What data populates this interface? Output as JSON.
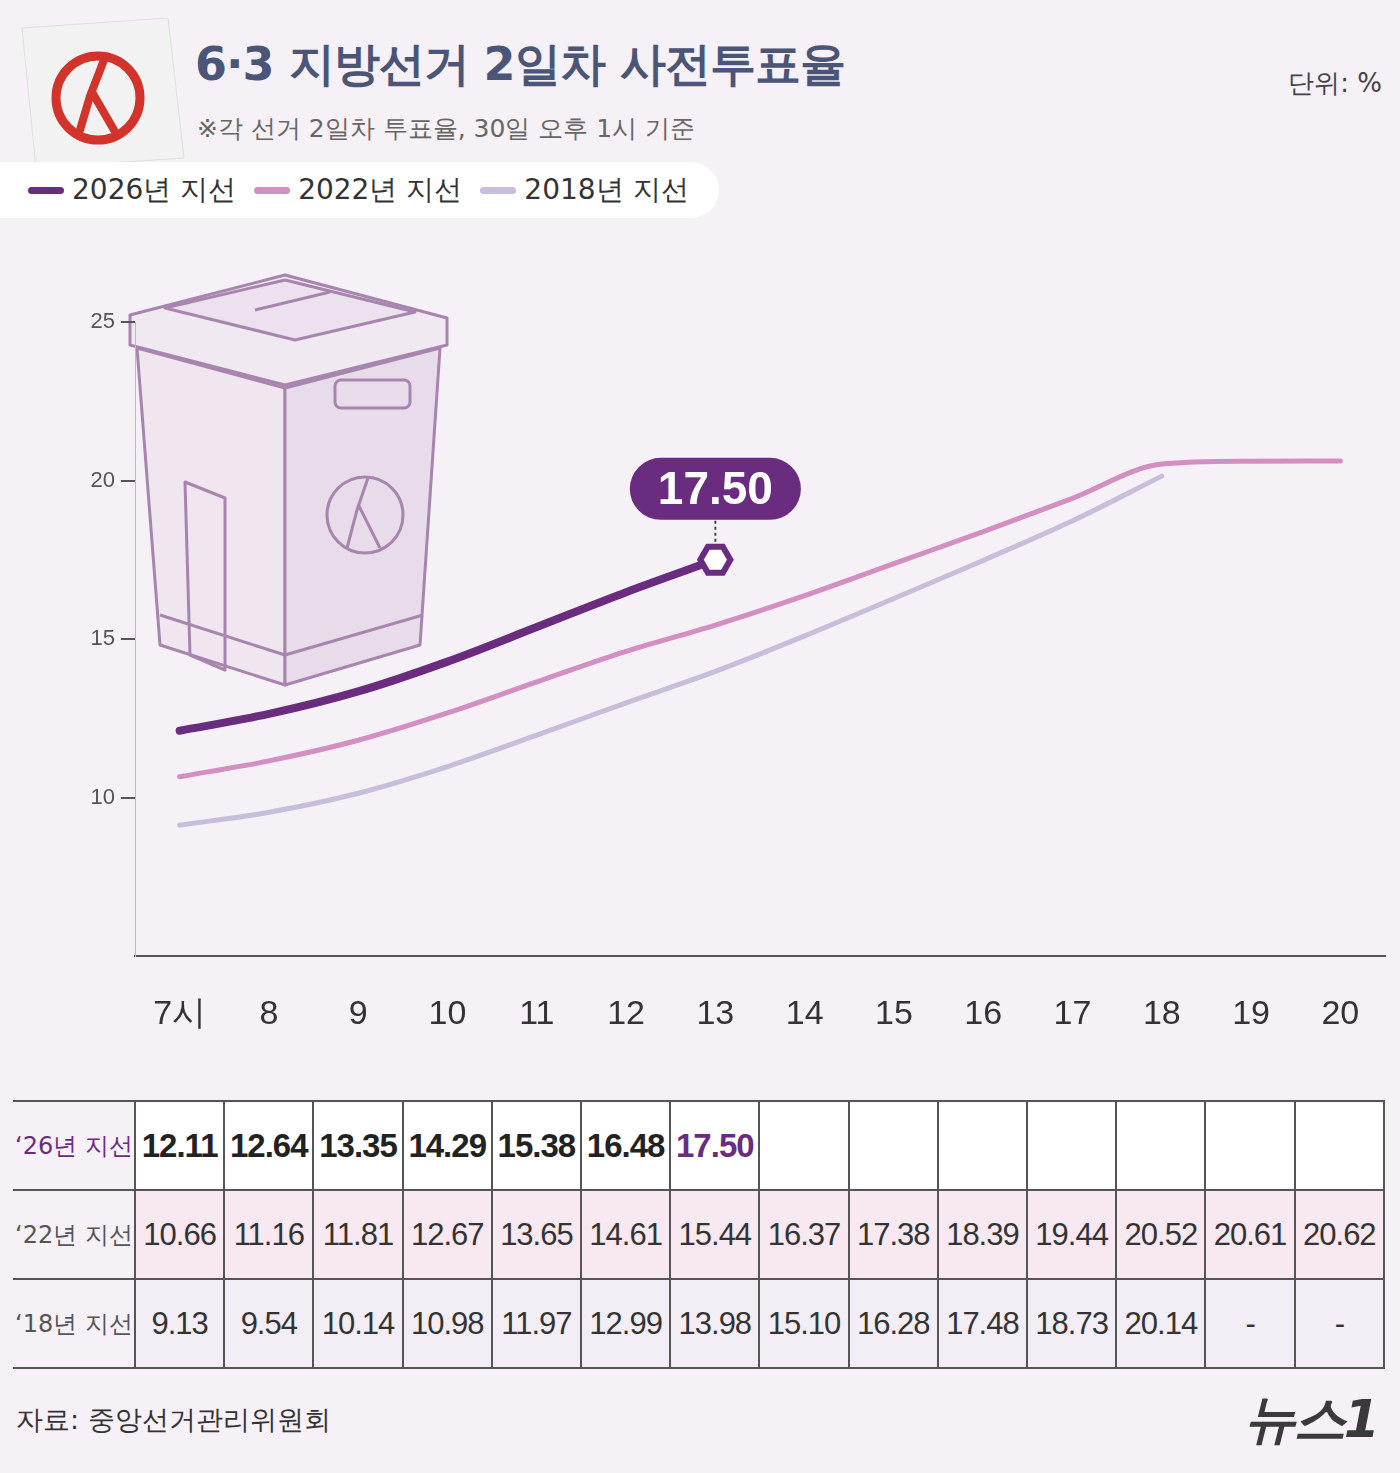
{
  "chart_data": {
    "type": "line",
    "title": "6·3 지방선거 2일차 사전투표율",
    "subtitle": "※각 선거 2일차 투표율, 30일 오후 1시 기준",
    "unit_label": "단위: %",
    "source": "자료: 중앙선거관리위원회",
    "brand": "뉴스1",
    "categories": [
      "7시",
      "8",
      "9",
      "10",
      "11",
      "12",
      "13",
      "14",
      "15",
      "16",
      "17",
      "18",
      "19",
      "20"
    ],
    "series": [
      {
        "name": "2026년 지선",
        "table_label": "‘26년 지선",
        "color": "#6a2c7e",
        "values": [
          12.11,
          12.64,
          13.35,
          14.29,
          15.38,
          16.48,
          17.5,
          null,
          null,
          null,
          null,
          null,
          null,
          null
        ],
        "value_labels": [
          "12.11",
          "12.64",
          "13.35",
          "14.29",
          "15.38",
          "16.48",
          "17.50",
          null,
          null,
          null,
          null,
          null,
          null,
          null
        ]
      },
      {
        "name": "2022년 지선",
        "table_label": "‘22년 지선",
        "color": "#d38ec2",
        "values": [
          10.66,
          11.16,
          11.81,
          12.67,
          13.65,
          14.61,
          15.44,
          16.37,
          17.38,
          18.39,
          19.44,
          20.52,
          20.61,
          20.62
        ],
        "value_labels": [
          "10.66",
          "11.16",
          "11.81",
          "12.67",
          "13.65",
          "14.61",
          "15.44",
          "16.37",
          "17.38",
          "18.39",
          "19.44",
          "20.52",
          "20.61",
          "20.62"
        ]
      },
      {
        "name": "2018년 지선",
        "table_label": "‘18년 지선",
        "color": "#c8bedb",
        "values": [
          9.13,
          9.54,
          10.14,
          10.98,
          11.97,
          12.99,
          13.98,
          15.1,
          16.28,
          17.48,
          18.73,
          20.14,
          null,
          null
        ],
        "value_labels": [
          "9.13",
          "9.54",
          "10.14",
          "10.98",
          "11.97",
          "12.99",
          "13.98",
          "15.10",
          "16.28",
          "17.48",
          "18.73",
          "20.14",
          "-",
          "-"
        ]
      }
    ],
    "annotation": {
      "series": "2026년 지선",
      "category": "13",
      "value": 17.5,
      "label": "17.50"
    },
    "ylim": [
      5,
      25
    ],
    "yticks": [
      10,
      15,
      20,
      25
    ],
    "grid": false,
    "legend": "top-left"
  }
}
